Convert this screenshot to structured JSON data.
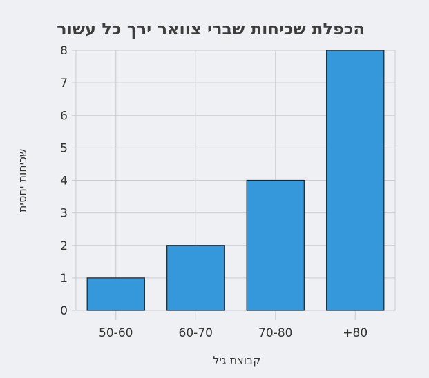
{
  "chart_data": {
    "type": "bar",
    "title": "הכפלת שכיחות שברי צוואר ירך כל עשור",
    "xlabel": "קבוצת גיל",
    "ylabel": "שכיחות יחסית",
    "categories": [
      "50-60",
      "60-70",
      "70-80",
      "+80"
    ],
    "values": [
      1,
      2,
      4,
      8
    ],
    "ylim": [
      0,
      8
    ],
    "yticks": [
      0,
      1,
      2,
      3,
      4,
      5,
      6,
      7,
      8
    ],
    "grid": true,
    "legend": "none",
    "colors": {
      "bar": "#3498db",
      "bar_edge": "#222222",
      "grid": "#c8cbd0",
      "background": "#eef0f3"
    }
  }
}
